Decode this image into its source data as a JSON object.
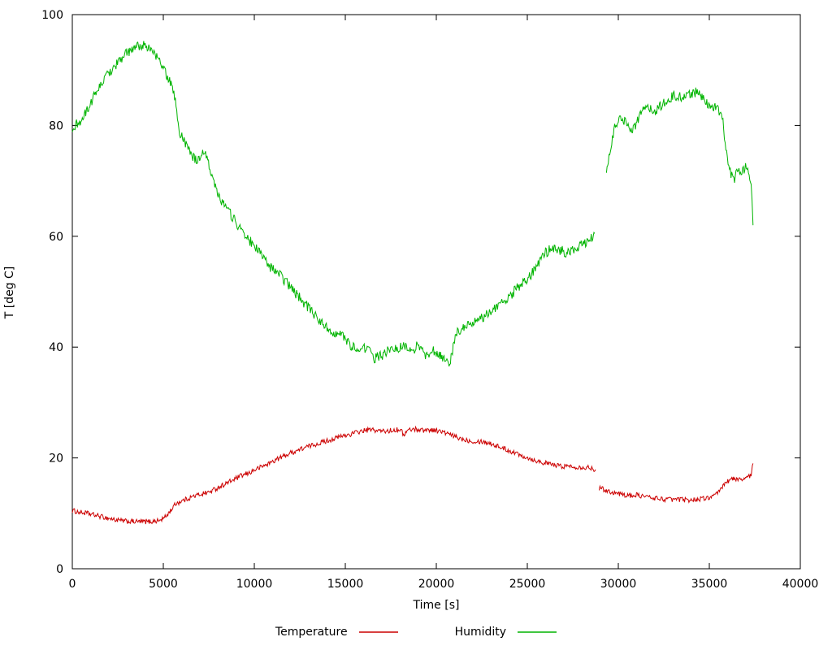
{
  "chart_data": {
    "type": "line",
    "title": "",
    "xlabel": "Time [s]",
    "ylabel": "T [deg C]",
    "xlim": [
      0,
      40000
    ],
    "ylim": [
      0,
      100
    ],
    "x_ticks": [
      0,
      5000,
      10000,
      15000,
      20000,
      25000,
      30000,
      35000,
      40000
    ],
    "y_ticks": [
      0,
      20,
      40,
      60,
      80,
      100
    ],
    "grid": false,
    "border": true,
    "legend_position": "bottom-center",
    "series": [
      {
        "name": "Temperature",
        "color": "#cc0000",
        "noise": 0.45,
        "segments": [
          [
            [
              0,
              10.5
            ],
            [
              400,
              10.2
            ],
            [
              800,
              10.0
            ],
            [
              1200,
              9.7
            ],
            [
              1600,
              9.4
            ],
            [
              2000,
              9.1
            ],
            [
              2400,
              8.8
            ],
            [
              2800,
              8.6
            ],
            [
              3300,
              8.5
            ],
            [
              3800,
              8.5
            ],
            [
              4300,
              8.5
            ],
            [
              4800,
              8.7
            ],
            [
              5100,
              9.3
            ],
            [
              5400,
              10.5
            ],
            [
              5700,
              11.8
            ],
            [
              6000,
              12.2
            ],
            [
              6300,
              12.6
            ],
            [
              6600,
              13.0
            ],
            [
              6900,
              13.3
            ],
            [
              7200,
              13.6
            ],
            [
              7500,
              13.8
            ],
            [
              7800,
              14.3
            ],
            [
              8100,
              14.8
            ],
            [
              8400,
              15.3
            ],
            [
              8700,
              15.8
            ],
            [
              9000,
              16.3
            ],
            [
              9300,
              16.8
            ],
            [
              9600,
              17.1
            ],
            [
              10000,
              17.8
            ],
            [
              10400,
              18.4
            ],
            [
              10800,
              19.0
            ],
            [
              11200,
              19.7
            ],
            [
              11600,
              20.3
            ],
            [
              12000,
              20.9
            ],
            [
              12400,
              21.4
            ],
            [
              12800,
              21.9
            ],
            [
              13200,
              22.3
            ],
            [
              13600,
              22.7
            ],
            [
              14000,
              23.1
            ],
            [
              14400,
              23.5
            ],
            [
              14800,
              23.9
            ],
            [
              15200,
              24.2
            ],
            [
              15600,
              24.6
            ],
            [
              16000,
              24.9
            ],
            [
              16400,
              25.1
            ],
            [
              16800,
              24.9
            ],
            [
              17200,
              24.8
            ],
            [
              17600,
              25.0
            ],
            [
              18000,
              25.2
            ],
            [
              18200,
              24.2
            ],
            [
              18500,
              25.1
            ],
            [
              18900,
              25.2
            ],
            [
              19300,
              25.0
            ],
            [
              19700,
              25.1
            ],
            [
              20100,
              24.9
            ],
            [
              20500,
              24.5
            ],
            [
              20900,
              24.0
            ],
            [
              21300,
              23.5
            ],
            [
              21700,
              23.2
            ],
            [
              22100,
              23.0
            ],
            [
              22500,
              23.0
            ],
            [
              22900,
              22.7
            ],
            [
              23300,
              22.2
            ],
            [
              23700,
              21.7
            ],
            [
              24100,
              21.2
            ],
            [
              24500,
              20.7
            ],
            [
              24900,
              20.2
            ],
            [
              25300,
              19.7
            ],
            [
              25700,
              19.3
            ],
            [
              26100,
              19.0
            ],
            [
              26500,
              18.7
            ],
            [
              26900,
              18.5
            ],
            [
              27300,
              18.5
            ],
            [
              27700,
              18.4
            ],
            [
              28100,
              18.3
            ],
            [
              28500,
              18.2
            ],
            [
              28750,
              17.9
            ]
          ],
          [
            [
              28950,
              14.6
            ],
            [
              29200,
              14.3
            ],
            [
              29500,
              14.0
            ],
            [
              29800,
              13.7
            ],
            [
              30100,
              13.5
            ],
            [
              30400,
              13.3
            ],
            [
              30700,
              13.2
            ],
            [
              31000,
              13.3
            ],
            [
              31400,
              13.1
            ],
            [
              31800,
              12.8
            ],
            [
              32200,
              12.7
            ],
            [
              32600,
              12.5
            ],
            [
              33000,
              12.5
            ],
            [
              33400,
              12.5
            ],
            [
              33800,
              12.4
            ],
            [
              34200,
              12.5
            ],
            [
              34600,
              12.6
            ],
            [
              35000,
              12.9
            ],
            [
              35300,
              13.1
            ],
            [
              35600,
              14.2
            ],
            [
              35900,
              15.6
            ],
            [
              36200,
              16.2
            ],
            [
              36500,
              16.1
            ],
            [
              36800,
              16.3
            ],
            [
              37100,
              16.4
            ],
            [
              37300,
              17.0
            ],
            [
              37400,
              19.0
            ]
          ]
        ]
      },
      {
        "name": "Humidity",
        "color": "#00b400",
        "noise": 0.9,
        "segments": [
          [
            [
              0,
              78.0
            ],
            [
              150,
              80.0
            ],
            [
              400,
              80.5
            ],
            [
              700,
              82.0
            ],
            [
              1000,
              84.0
            ],
            [
              1300,
              86.0
            ],
            [
              1600,
              87.5
            ],
            [
              2000,
              89.5
            ],
            [
              2400,
              91.0
            ],
            [
              2800,
              92.5
            ],
            [
              3200,
              93.5
            ],
            [
              3600,
              94.3
            ],
            [
              4000,
              94.5
            ],
            [
              4400,
              93.5
            ],
            [
              4800,
              91.5
            ],
            [
              5200,
              89.0
            ],
            [
              5500,
              87.0
            ],
            [
              5700,
              84.0
            ],
            [
              5850,
              79.0
            ],
            [
              6100,
              77.5
            ],
            [
              6400,
              76.0
            ],
            [
              6700,
              74.0
            ],
            [
              7000,
              73.5
            ],
            [
              7200,
              75.0
            ],
            [
              7400,
              74.5
            ],
            [
              7600,
              72.0
            ],
            [
              7900,
              68.5
            ],
            [
              8200,
              66.5
            ],
            [
              8500,
              65.0
            ],
            [
              8800,
              63.5
            ],
            [
              9100,
              62.0
            ],
            [
              9400,
              60.5
            ],
            [
              9800,
              59.0
            ],
            [
              10200,
              57.5
            ],
            [
              10600,
              55.5
            ],
            [
              11000,
              54.0
            ],
            [
              11400,
              53.0
            ],
            [
              11800,
              51.5
            ],
            [
              12200,
              50.0
            ],
            [
              12600,
              48.5
            ],
            [
              13000,
              47.0
            ],
            [
              13400,
              45.5
            ],
            [
              13800,
              44.0
            ],
            [
              14200,
              43.0
            ],
            [
              14600,
              42.5
            ],
            [
              15000,
              41.5
            ],
            [
              15400,
              40.0
            ],
            [
              15800,
              39.5
            ],
            [
              16200,
              40.0
            ],
            [
              16600,
              38.0
            ],
            [
              17000,
              38.5
            ],
            [
              17400,
              39.5
            ],
            [
              17800,
              39.5
            ],
            [
              18200,
              40.5
            ],
            [
              18600,
              39.0
            ],
            [
              19000,
              40.5
            ],
            [
              19400,
              38.5
            ],
            [
              19800,
              39.5
            ],
            [
              20200,
              38.5
            ],
            [
              20500,
              37.5
            ],
            [
              20700,
              37.0
            ],
            [
              20850,
              38.5
            ],
            [
              21000,
              41.0
            ],
            [
              21200,
              43.0
            ],
            [
              21600,
              43.5
            ],
            [
              22000,
              44.5
            ],
            [
              22400,
              45.0
            ],
            [
              22800,
              46.0
            ],
            [
              23200,
              47.0
            ],
            [
              23600,
              48.0
            ],
            [
              24000,
              49.0
            ],
            [
              24400,
              50.5
            ],
            [
              24800,
              51.5
            ],
            [
              25200,
              53.0
            ],
            [
              25600,
              55.0
            ],
            [
              26000,
              57.0
            ],
            [
              26400,
              58.0
            ],
            [
              26800,
              57.5
            ],
            [
              27200,
              57.0
            ],
            [
              27600,
              57.5
            ],
            [
              28000,
              58.5
            ],
            [
              28400,
              59.0
            ],
            [
              28700,
              60.5
            ]
          ],
          [
            [
              29350,
              71.0
            ],
            [
              29450,
              73.5
            ],
            [
              29600,
              76.0
            ],
            [
              29800,
              79.5
            ],
            [
              30000,
              81.0
            ],
            [
              30200,
              81.0
            ],
            [
              30500,
              80.5
            ],
            [
              30700,
              79.0
            ],
            [
              30900,
              79.5
            ],
            [
              31100,
              81.0
            ],
            [
              31400,
              83.0
            ],
            [
              31700,
              83.0
            ],
            [
              32000,
              82.5
            ],
            [
              32300,
              83.5
            ],
            [
              32700,
              84.5
            ],
            [
              33100,
              85.5
            ],
            [
              33500,
              85.0
            ],
            [
              33900,
              85.5
            ],
            [
              34300,
              86.0
            ],
            [
              34600,
              85.0
            ],
            [
              34900,
              84.0
            ],
            [
              35200,
              83.5
            ],
            [
              35500,
              83.0
            ],
            [
              35750,
              80.5
            ],
            [
              35950,
              75.0
            ],
            [
              36150,
              71.5
            ],
            [
              36350,
              70.0
            ],
            [
              36550,
              72.0
            ],
            [
              36750,
              71.0
            ],
            [
              36950,
              72.5
            ],
            [
              37150,
              71.5
            ],
            [
              37300,
              70.0
            ],
            [
              37350,
              66.0
            ],
            [
              37400,
              62.0
            ]
          ]
        ]
      }
    ]
  }
}
